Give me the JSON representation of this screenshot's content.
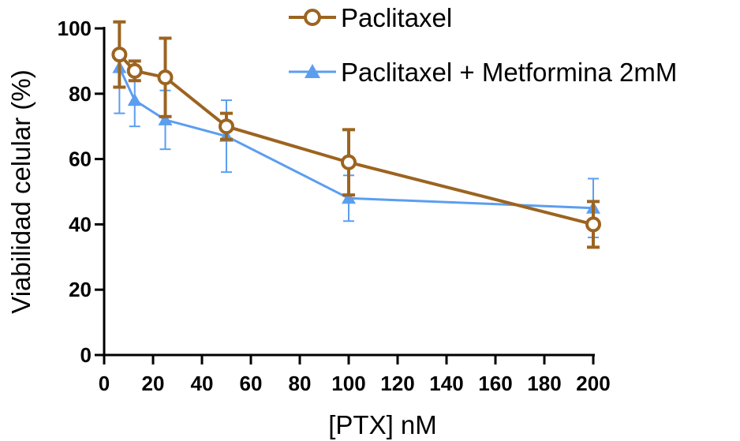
{
  "chart_data": {
    "type": "line",
    "title": "",
    "xlabel": "[PTX] nM",
    "ylabel": "Viabilidad celular (%)",
    "xlim": [
      0,
      200
    ],
    "ylim": [
      0,
      100
    ],
    "xticks": [
      0,
      20,
      40,
      60,
      80,
      100,
      120,
      140,
      160,
      180,
      200
    ],
    "yticks": [
      0,
      20,
      40,
      60,
      80,
      100
    ],
    "grid": false,
    "legend_position": "top-right",
    "series": [
      {
        "name": "Paclitaxel",
        "color": "#9c6420",
        "marker": "open-circle",
        "x": [
          6.25,
          12.5,
          25,
          50,
          100,
          200
        ],
        "y": [
          92,
          87,
          85,
          70,
          59,
          40
        ],
        "error": [
          10,
          3,
          12,
          4,
          10,
          7
        ]
      },
      {
        "name": "Paclitaxel + Metformina 2mM",
        "color": "#5b9ef0",
        "marker": "triangle",
        "x": [
          6.25,
          12.5,
          25,
          50,
          100,
          200
        ],
        "y": [
          88,
          78,
          72,
          67,
          48,
          45
        ],
        "error": [
          14,
          8,
          9,
          11,
          7,
          9
        ]
      }
    ]
  }
}
